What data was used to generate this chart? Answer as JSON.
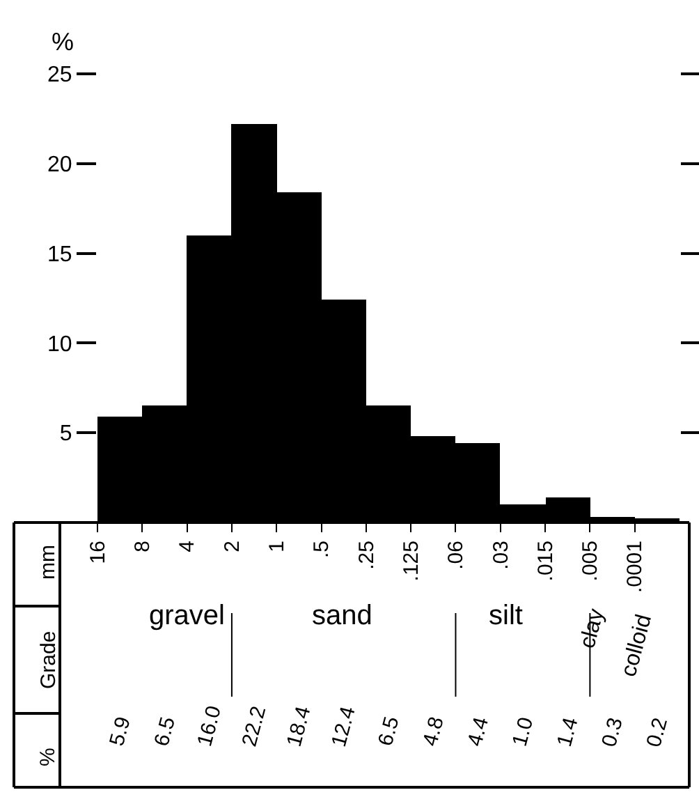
{
  "chart_data": {
    "type": "bar",
    "ylabel": "%",
    "categories": [
      "16",
      "8",
      "4",
      "2",
      "1",
      ".5",
      ".25",
      ".125",
      ".06",
      ".03",
      ".015",
      ".005",
      ".0001"
    ],
    "values": [
      5.9,
      6.5,
      16.0,
      22.2,
      18.4,
      12.4,
      6.5,
      4.8,
      4.4,
      1.0,
      1.4,
      0.3,
      0.2
    ],
    "color": "#000000",
    "ylim": [
      0,
      25
    ],
    "yticks": [
      5,
      10,
      15,
      20,
      25
    ],
    "legend": false,
    "annotations": [
      "mm",
      "Grade",
      "%",
      "gravel",
      "sand",
      "silt",
      "clay",
      "colloid",
      "5.9",
      "6.5",
      "16.0",
      "22.2",
      "18.4",
      "12.4",
      "6.5",
      "4.8",
      "4.4",
      "1.0",
      "1.4",
      "0.3",
      "0.2"
    ]
  }
}
